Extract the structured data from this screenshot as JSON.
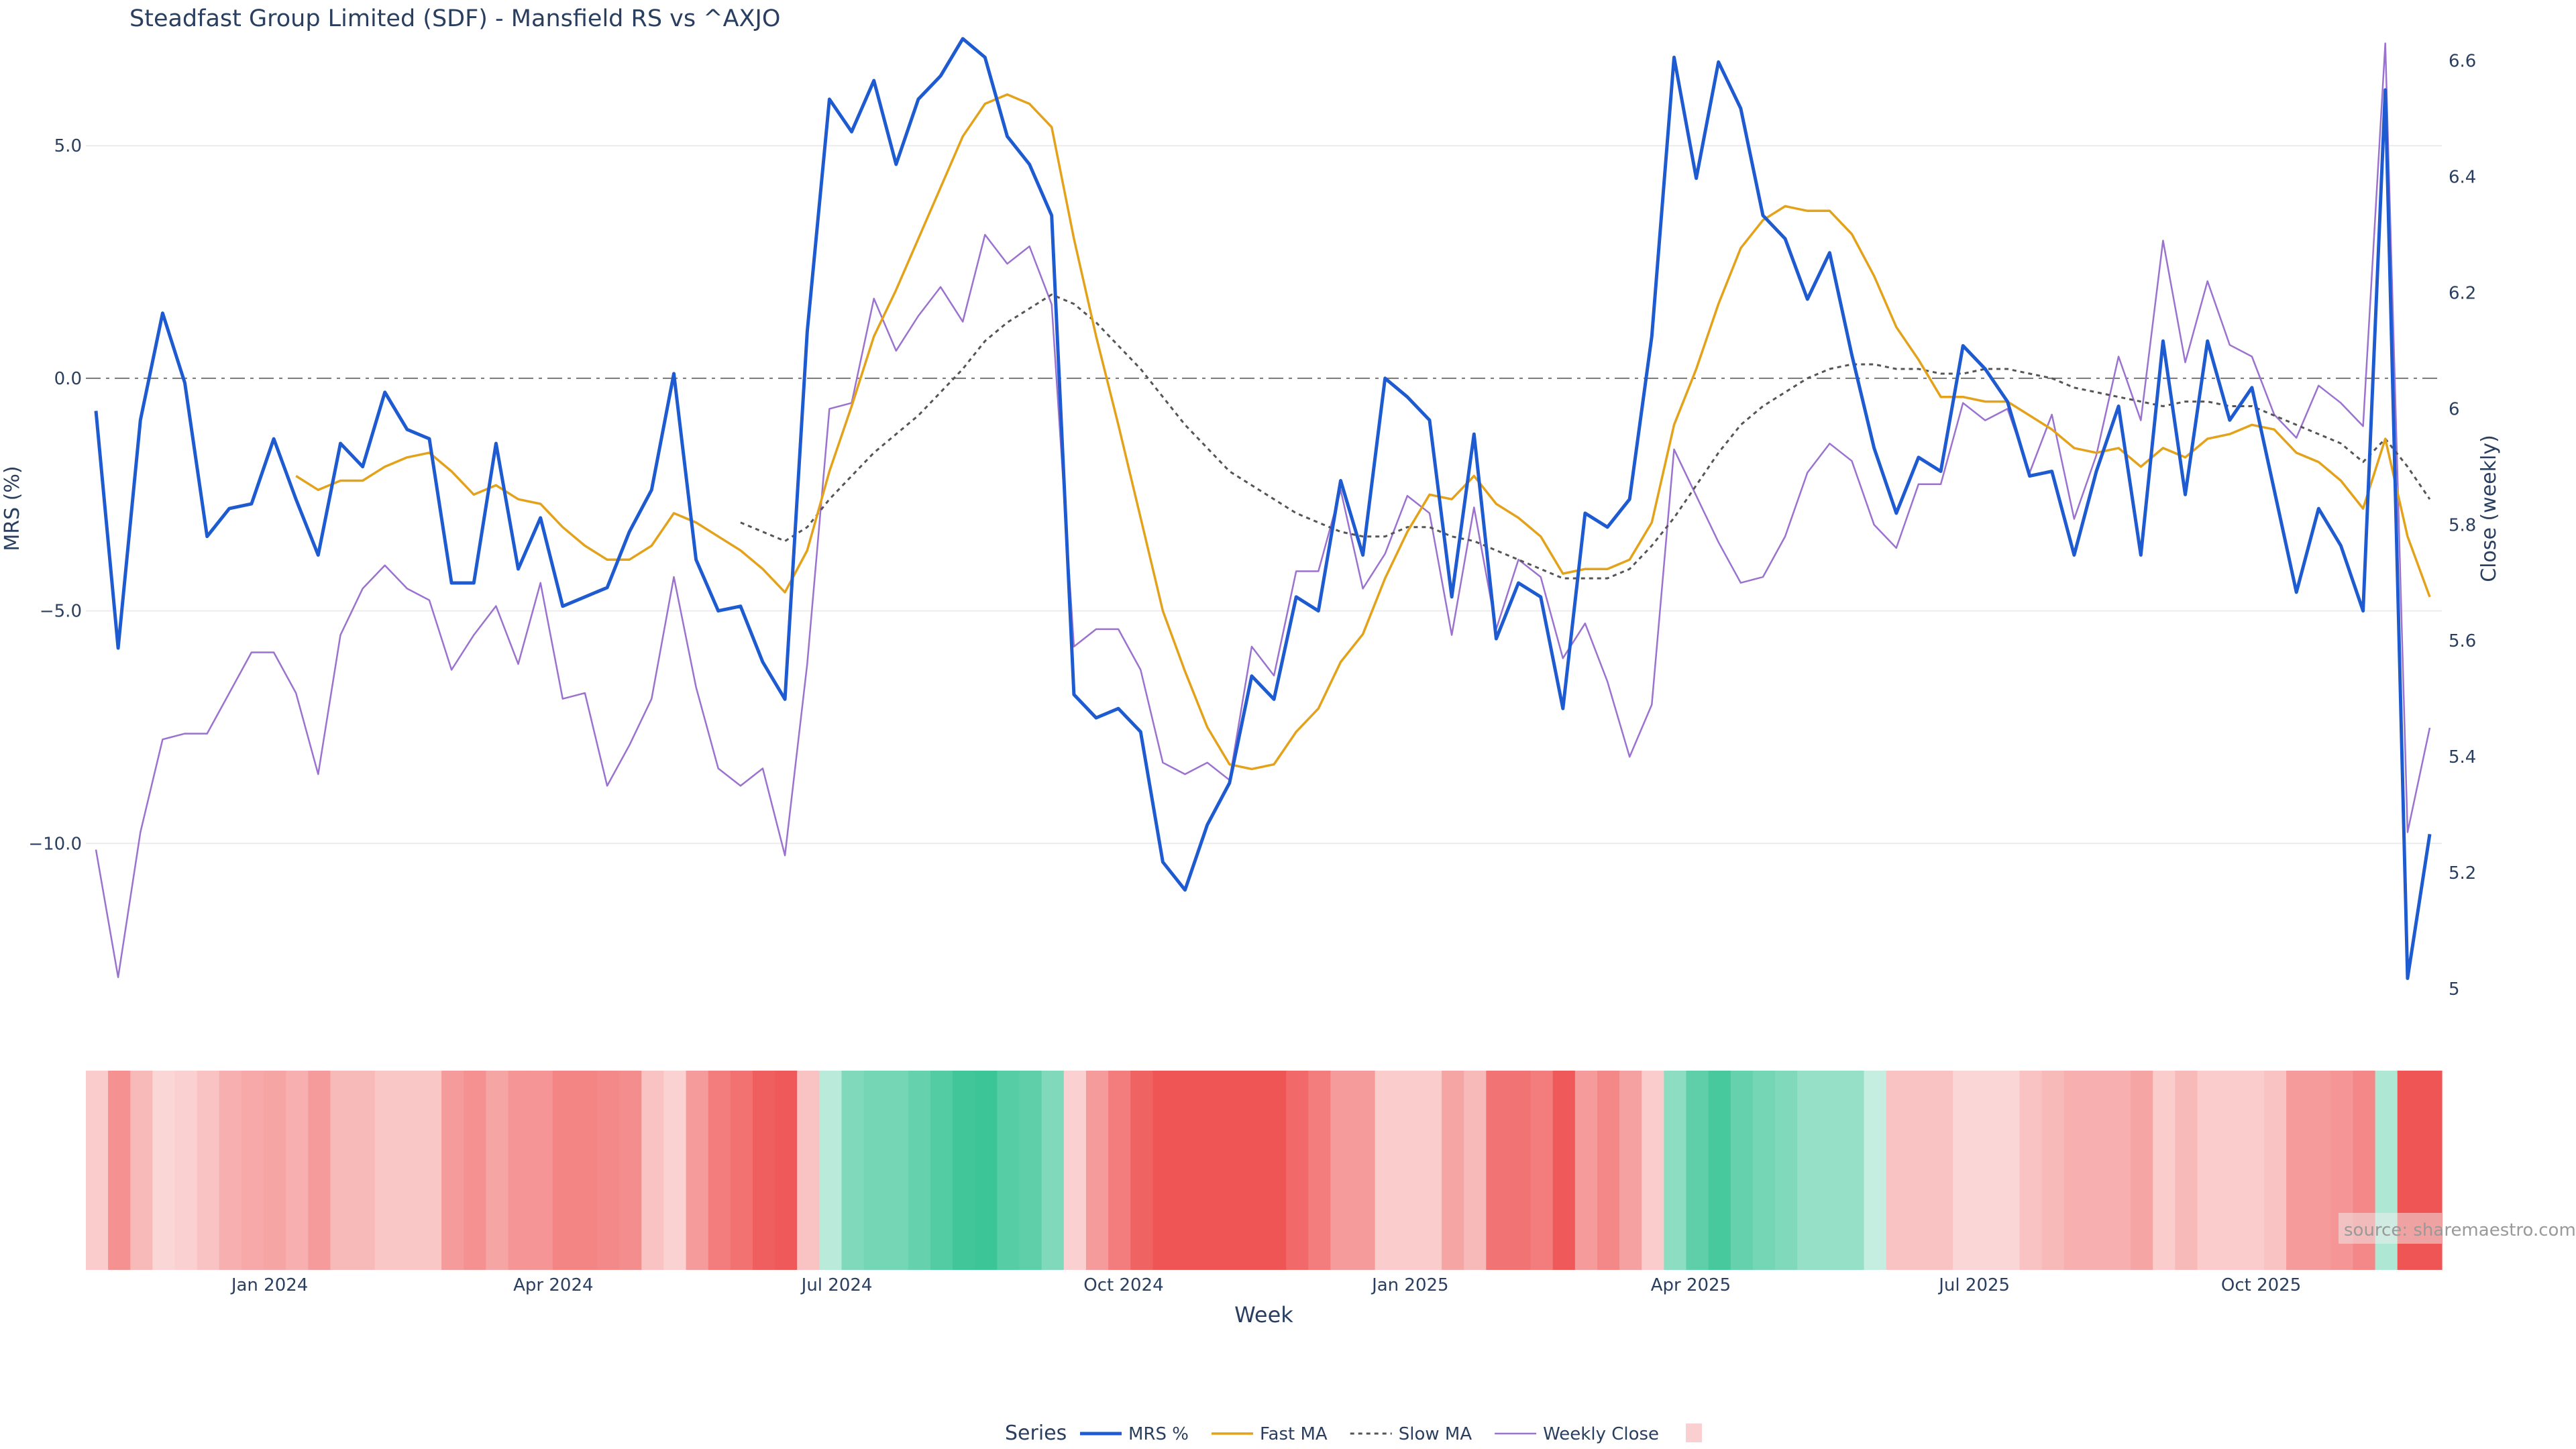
{
  "chart_data": {
    "type": "line",
    "title": "Steadfast Group Limited (SDF) - Mansfield RS vs ^AXJO",
    "xlabel": "Week",
    "ylabel_left": "MRS (%)",
    "ylabel_right": "Close (weekly)",
    "ylim_left": [
      -13.5,
      7.7
    ],
    "ylim_right": [
      4.97,
      6.67
    ],
    "left_ticks": [
      {
        "value": 5,
        "label": "5.0"
      },
      {
        "value": 0,
        "label": "0.0"
      },
      {
        "value": -5,
        "label": "−5.0"
      },
      {
        "value": -10,
        "label": "−10.0"
      }
    ],
    "right_ticks": [
      {
        "value": 6.6,
        "label": "6.6"
      },
      {
        "value": 6.4,
        "label": "6.4"
      },
      {
        "value": 6.2,
        "label": "6.2"
      },
      {
        "value": 6.0,
        "label": "6"
      },
      {
        "value": 5.8,
        "label": "5.8"
      },
      {
        "value": 5.6,
        "label": "5.6"
      },
      {
        "value": 5.4,
        "label": "5.4"
      },
      {
        "value": 5.2,
        "label": "5.2"
      },
      {
        "value": 5.0,
        "label": "5"
      }
    ],
    "x_ticks": [
      {
        "date": "2024-01-01",
        "label": "Jan 2024"
      },
      {
        "date": "2024-04-01",
        "label": "Apr 2024"
      },
      {
        "date": "2024-07-01",
        "label": "Jul 2024"
      },
      {
        "date": "2024-10-01",
        "label": "Oct 2024"
      },
      {
        "date": "2025-01-01",
        "label": "Jan 2025"
      },
      {
        "date": "2025-04-01",
        "label": "Apr 2025"
      },
      {
        "date": "2025-07-01",
        "label": "Jul 2025"
      },
      {
        "date": "2025-10-01",
        "label": "Oct 2025"
      }
    ],
    "x_range": [
      "2023-11-03",
      "2025-11-28"
    ],
    "zero_line": 0,
    "grid": true,
    "legend_position": "bottom-center",
    "legend_title": "Series",
    "source_note": "source: sharemaestro.com",
    "colors": {
      "mrs": "#1f5bd0",
      "fast_ma": "#e3a21a",
      "slow_ma": "#555555",
      "close": "#9b72cf",
      "heat_pos": "#3cc597",
      "heat_neg": "#ef5555"
    },
    "series": [
      {
        "name": "MRS %",
        "axis": "left",
        "values": [
          -0.7,
          -5.8,
          -0.9,
          1.4,
          -0.1,
          -3.4,
          -2.8,
          -2.7,
          -1.3,
          -2.6,
          -3.8,
          -1.4,
          -1.9,
          -0.3,
          -1.1,
          -1.3,
          -4.4,
          -4.4,
          -1.4,
          -4.1,
          -3.0,
          -4.9,
          -4.7,
          -4.5,
          -3.3,
          -2.4,
          0.1,
          -3.9,
          -5.0,
          -4.9,
          -6.1,
          -6.9,
          1.0,
          6.0,
          5.3,
          6.4,
          4.6,
          6.0,
          6.5,
          7.3,
          6.9,
          5.2,
          4.6,
          3.5,
          -6.8,
          -7.3,
          -7.1,
          -7.6,
          -10.4,
          -11.0,
          -9.6,
          -8.7,
          -6.4,
          -6.9,
          -4.7,
          -5.0,
          -2.2,
          -3.8,
          0.0,
          -0.4,
          -0.9,
          -4.7,
          -1.2,
          -5.6,
          -4.4,
          -4.7,
          -7.1,
          -2.9,
          -3.2,
          -2.6,
          0.9,
          6.9,
          4.3,
          6.8,
          5.8,
          3.5,
          3.0,
          1.7,
          2.7,
          0.5,
          -1.5,
          -2.9,
          -1.7,
          -2.0,
          0.7,
          0.2,
          -0.5,
          -2.1,
          -2.0,
          -3.8,
          -2.0,
          -0.6,
          -3.8,
          0.8,
          -2.5,
          0.8,
          -0.9,
          -0.2,
          -2.4,
          -4.6,
          -2.8,
          -3.6,
          -5.0,
          6.2,
          -12.9,
          -9.8
        ]
      },
      {
        "name": "Fast MA",
        "axis": "left",
        "values": [
          null,
          null,
          null,
          null,
          null,
          null,
          null,
          null,
          null,
          -2.1,
          -2.4,
          -2.2,
          -2.2,
          -1.9,
          -1.7,
          -1.6,
          -2.0,
          -2.5,
          -2.3,
          -2.6,
          -2.7,
          -3.2,
          -3.6,
          -3.9,
          -3.9,
          -3.6,
          -2.9,
          -3.1,
          -3.4,
          -3.7,
          -4.1,
          -4.6,
          -3.7,
          -2.0,
          -0.6,
          0.9,
          1.9,
          3.0,
          4.1,
          5.2,
          5.9,
          6.1,
          5.9,
          5.4,
          3.0,
          0.9,
          -1.0,
          -3.0,
          -5.0,
          -6.3,
          -7.5,
          -8.3,
          -8.4,
          -8.3,
          -7.6,
          -7.1,
          -6.1,
          -5.5,
          -4.3,
          -3.3,
          -2.5,
          -2.6,
          -2.1,
          -2.7,
          -3.0,
          -3.4,
          -4.2,
          -4.1,
          -4.1,
          -3.9,
          -3.1,
          -1.0,
          0.2,
          1.6,
          2.8,
          3.4,
          3.7,
          3.6,
          3.6,
          3.1,
          2.2,
          1.1,
          0.4,
          -0.4,
          -0.4,
          -0.5,
          -0.5,
          -0.8,
          -1.1,
          -1.5,
          -1.6,
          -1.5,
          -1.9,
          -1.5,
          -1.7,
          -1.3,
          -1.2,
          -1.0,
          -1.1,
          -1.6,
          -1.8,
          -2.2,
          -2.8,
          -1.3,
          -3.4,
          -4.7
        ]
      },
      {
        "name": "Slow MA",
        "axis": "left",
        "values": [
          null,
          null,
          null,
          null,
          null,
          null,
          null,
          null,
          null,
          null,
          null,
          null,
          null,
          null,
          null,
          null,
          null,
          null,
          null,
          null,
          null,
          null,
          null,
          null,
          null,
          null,
          null,
          null,
          null,
          -3.1,
          -3.3,
          -3.5,
          -3.2,
          -2.6,
          -2.1,
          -1.6,
          -1.2,
          -0.8,
          -0.3,
          0.2,
          0.8,
          1.2,
          1.5,
          1.8,
          1.6,
          1.2,
          0.7,
          0.2,
          -0.4,
          -1.0,
          -1.5,
          -2.0,
          -2.3,
          -2.6,
          -2.9,
          -3.1,
          -3.3,
          -3.4,
          -3.4,
          -3.2,
          -3.2,
          -3.4,
          -3.5,
          -3.7,
          -3.9,
          -4.1,
          -4.3,
          -4.3,
          -4.3,
          -4.1,
          -3.6,
          -3.0,
          -2.3,
          -1.6,
          -1.0,
          -0.6,
          -0.3,
          0.0,
          0.2,
          0.3,
          0.3,
          0.2,
          0.2,
          0.1,
          0.1,
          0.2,
          0.2,
          0.1,
          0.0,
          -0.2,
          -0.3,
          -0.4,
          -0.5,
          -0.6,
          -0.5,
          -0.5,
          -0.6,
          -0.6,
          -0.8,
          -1.0,
          -1.2,
          -1.4,
          -1.8,
          -1.3,
          -1.9,
          -2.6
        ]
      },
      {
        "name": "Weekly Close",
        "axis": "right",
        "values": [
          5.24,
          5.02,
          5.27,
          5.43,
          5.44,
          5.44,
          5.51,
          5.58,
          5.58,
          5.51,
          5.37,
          5.61,
          5.69,
          5.73,
          5.69,
          5.67,
          5.55,
          5.61,
          5.66,
          5.56,
          5.7,
          5.5,
          5.51,
          5.35,
          5.42,
          5.5,
          5.71,
          5.52,
          5.38,
          5.35,
          5.38,
          5.23,
          5.56,
          6.0,
          6.01,
          6.19,
          6.1,
          6.16,
          6.21,
          6.15,
          6.3,
          6.25,
          6.28,
          6.18,
          5.59,
          5.62,
          5.62,
          5.55,
          5.39,
          5.37,
          5.39,
          5.36,
          5.59,
          5.54,
          5.72,
          5.72,
          5.86,
          5.69,
          5.75,
          5.85,
          5.82,
          5.61,
          5.83,
          5.62,
          5.74,
          5.71,
          5.57,
          5.63,
          5.53,
          5.4,
          5.49,
          5.93,
          5.85,
          5.77,
          5.7,
          5.71,
          5.78,
          5.89,
          5.94,
          5.91,
          5.8,
          5.76,
          5.87,
          5.87,
          6.01,
          5.98,
          6.0,
          5.89,
          5.99,
          5.81,
          5.92,
          6.09,
          5.98,
          6.29,
          6.08,
          6.22,
          6.11,
          6.09,
          5.99,
          5.95,
          6.04,
          6.01,
          5.97,
          6.63,
          5.27,
          5.45
        ]
      }
    ],
    "heatmap_values": [
      -1.0,
      -4.0,
      -2.0,
      -0.5,
      -0.8,
      -1.5,
      -2.5,
      -2.8,
      -3.0,
      -2.5,
      -3.5,
      -2.0,
      -2.0,
      -1.3,
      -1.3,
      -1.3,
      -3.5,
      -4.0,
      -3.0,
      -3.8,
      -3.8,
      -4.6,
      -4.6,
      -4.4,
      -4.2,
      -1.5,
      -0.7,
      -3.5,
      -5.0,
      -5.6,
      -6.5,
      -6.8,
      -1.5,
      1.5,
      4.0,
      4.5,
      4.5,
      5.2,
      6.0,
      6.8,
      7.0,
      5.8,
      5.5,
      4.0,
      -0.8,
      -3.5,
      -5.0,
      -6.3,
      -8.0,
      -8.0,
      -8.0,
      -8.0,
      -8.0,
      -8.0,
      -6.0,
      -5.0,
      -3.5,
      -3.5,
      -1.0,
      -1.0,
      -1.0,
      -3.0,
      -2.0,
      -5.5,
      -5.5,
      -5.0,
      -6.8,
      -3.5,
      -4.5,
      -3.2,
      -1.0,
      3.5,
      5.5,
      6.5,
      5.2,
      4.5,
      4.0,
      3.0,
      3.0,
      3.0,
      1.0,
      -1.5,
      -1.5,
      -1.5,
      -0.5,
      -0.5,
      -0.5,
      -1.5,
      -2.0,
      -2.5,
      -2.5,
      -2.5,
      -3.0,
      -1.0,
      -2.0,
      -1.0,
      -1.0,
      -1.0,
      -1.5,
      -3.5,
      -3.5,
      -3.8,
      -4.5,
      2.0,
      -7.0,
      -8.0
    ]
  }
}
